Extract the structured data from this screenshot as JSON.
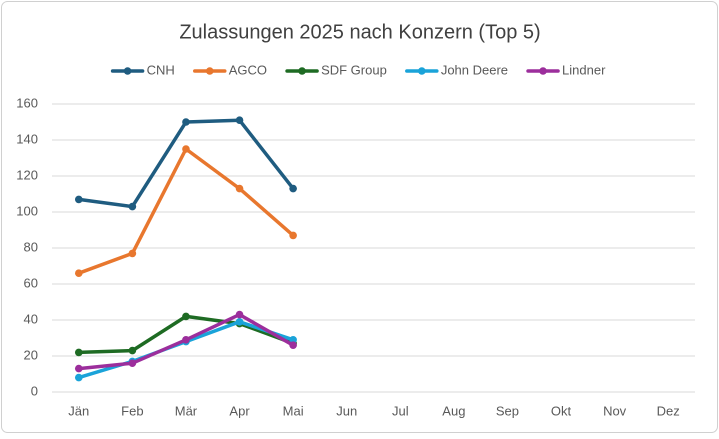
{
  "chart_data": {
    "type": "line",
    "title": "Zulassungen 2025 nach Konzern (Top 5)",
    "categories": [
      "Jän",
      "Feb",
      "Mär",
      "Apr",
      "Mai",
      "Jun",
      "Jul",
      "Aug",
      "Sep",
      "Okt",
      "Nov",
      "Dez"
    ],
    "series": [
      {
        "name": "CNH",
        "color": "#1f5c80",
        "values": [
          107,
          103,
          150,
          151,
          113,
          null,
          null,
          null,
          null,
          null,
          null,
          null
        ]
      },
      {
        "name": "AGCO",
        "color": "#e8772e",
        "values": [
          66,
          77,
          135,
          113,
          87,
          null,
          null,
          null,
          null,
          null,
          null,
          null
        ]
      },
      {
        "name": "SDF Group",
        "color": "#1e6b23",
        "values": [
          22,
          23,
          42,
          38,
          27,
          null,
          null,
          null,
          null,
          null,
          null,
          null
        ]
      },
      {
        "name": "John Deere",
        "color": "#1aa3d9",
        "values": [
          8,
          17,
          28,
          39,
          29,
          null,
          null,
          null,
          null,
          null,
          null,
          null
        ]
      },
      {
        "name": "Lindner",
        "color": "#9c2e9c",
        "values": [
          13,
          16,
          29,
          43,
          26,
          null,
          null,
          null,
          null,
          null,
          null,
          null
        ]
      }
    ],
    "ylim": [
      0,
      160
    ],
    "yticks": [
      0,
      20,
      40,
      60,
      80,
      100,
      120,
      140,
      160
    ],
    "grid": true,
    "legend": "top"
  }
}
